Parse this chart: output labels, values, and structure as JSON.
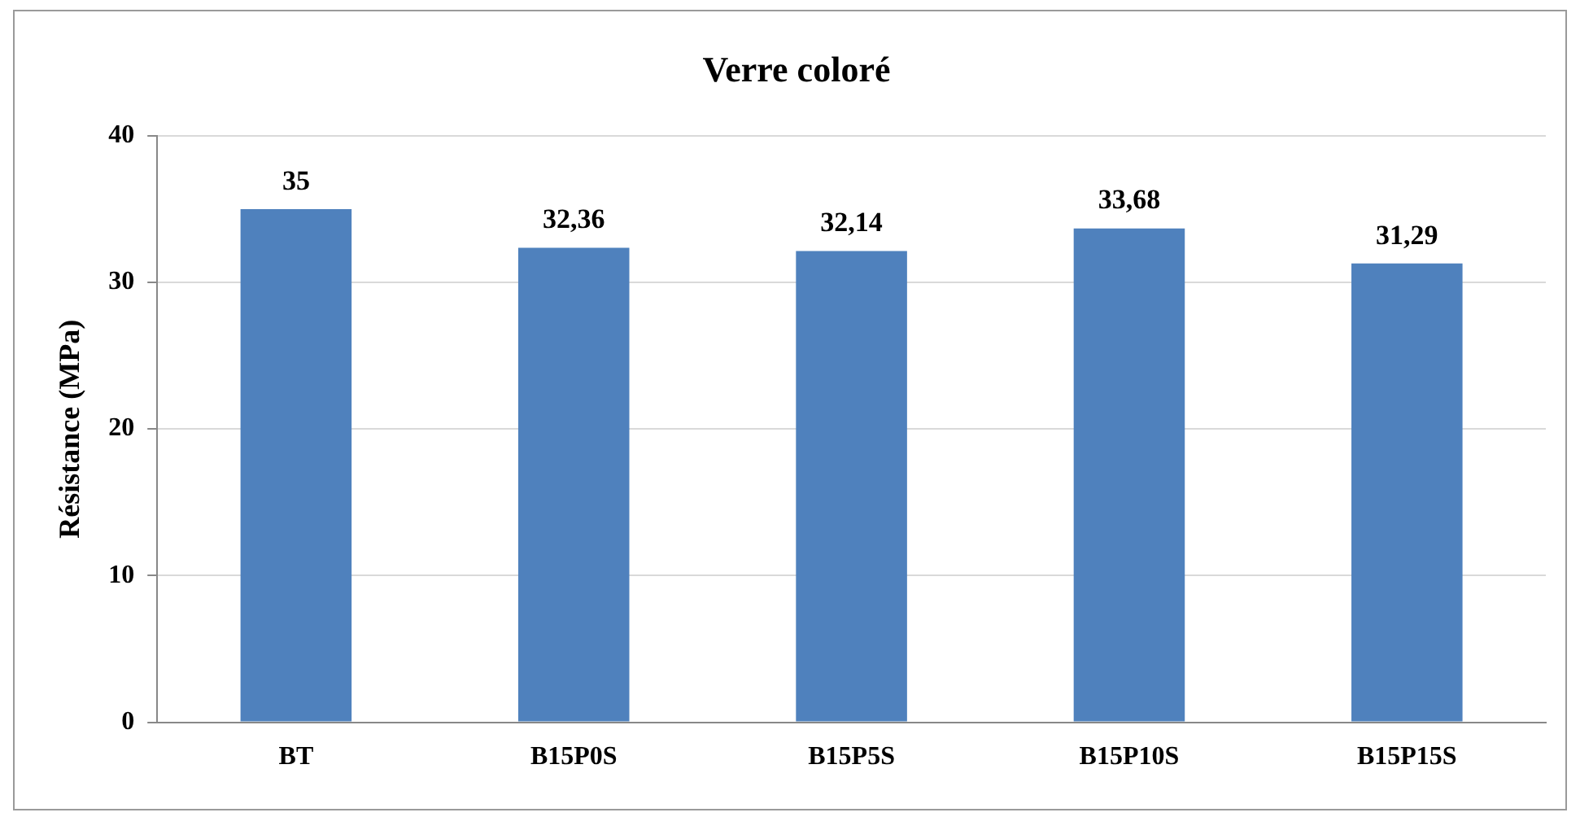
{
  "chart_data": {
    "type": "bar",
    "title": "Verre coloré",
    "ylabel": "Résistance (MPa)",
    "categories": [
      "BT",
      "B15P0S",
      "B15P5S",
      "B15P10S",
      "B15P15S"
    ],
    "values": [
      35,
      32.36,
      32.14,
      33.68,
      31.29
    ],
    "value_labels": [
      "35",
      "32,36",
      "32,14",
      "33,68",
      "31,29"
    ],
    "color": "#4f81bd",
    "ylim": [
      0,
      40
    ],
    "yticks": [
      0,
      10,
      20,
      30,
      40
    ],
    "grid": "y",
    "legend": false
  }
}
